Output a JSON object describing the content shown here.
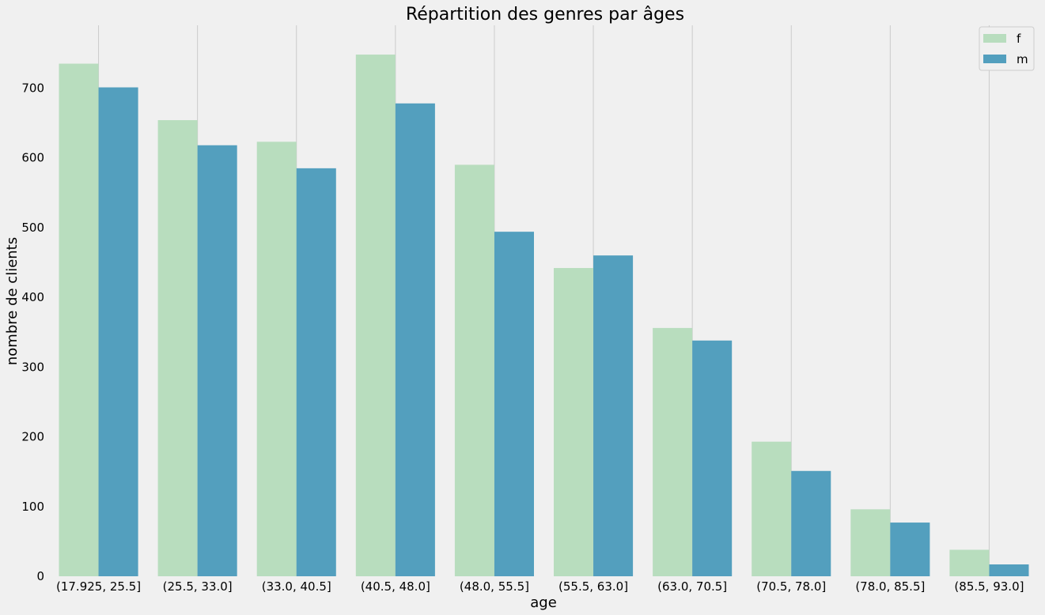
{
  "chart_data": {
    "type": "bar",
    "title": "Répartition des genres par âges",
    "xlabel": "age",
    "ylabel": "nombre de clients",
    "categories": [
      "(17.925, 25.5]",
      "(25.5, 33.0]",
      "(33.0, 40.5]",
      "(40.5, 48.0]",
      "(48.0, 55.5]",
      "(55.5, 63.0]",
      "(63.0, 70.5]",
      "(70.5, 78.0]",
      "(78.0, 85.5]",
      "(85.5, 93.0]"
    ],
    "series": [
      {
        "name": "f",
        "color": "#b8ddbe",
        "values": [
          735,
          654,
          623,
          748,
          590,
          442,
          356,
          193,
          96,
          38
        ]
      },
      {
        "name": "m",
        "color": "#539fbe",
        "values": [
          701,
          618,
          585,
          678,
          494,
          460,
          338,
          151,
          77,
          17
        ]
      }
    ],
    "ylim": [
      0,
      790
    ],
    "yticks": [
      0,
      100,
      200,
      300,
      400,
      500,
      600,
      700
    ],
    "grid": "vertical",
    "legend": "top-right",
    "background": "#f0f0f0"
  }
}
